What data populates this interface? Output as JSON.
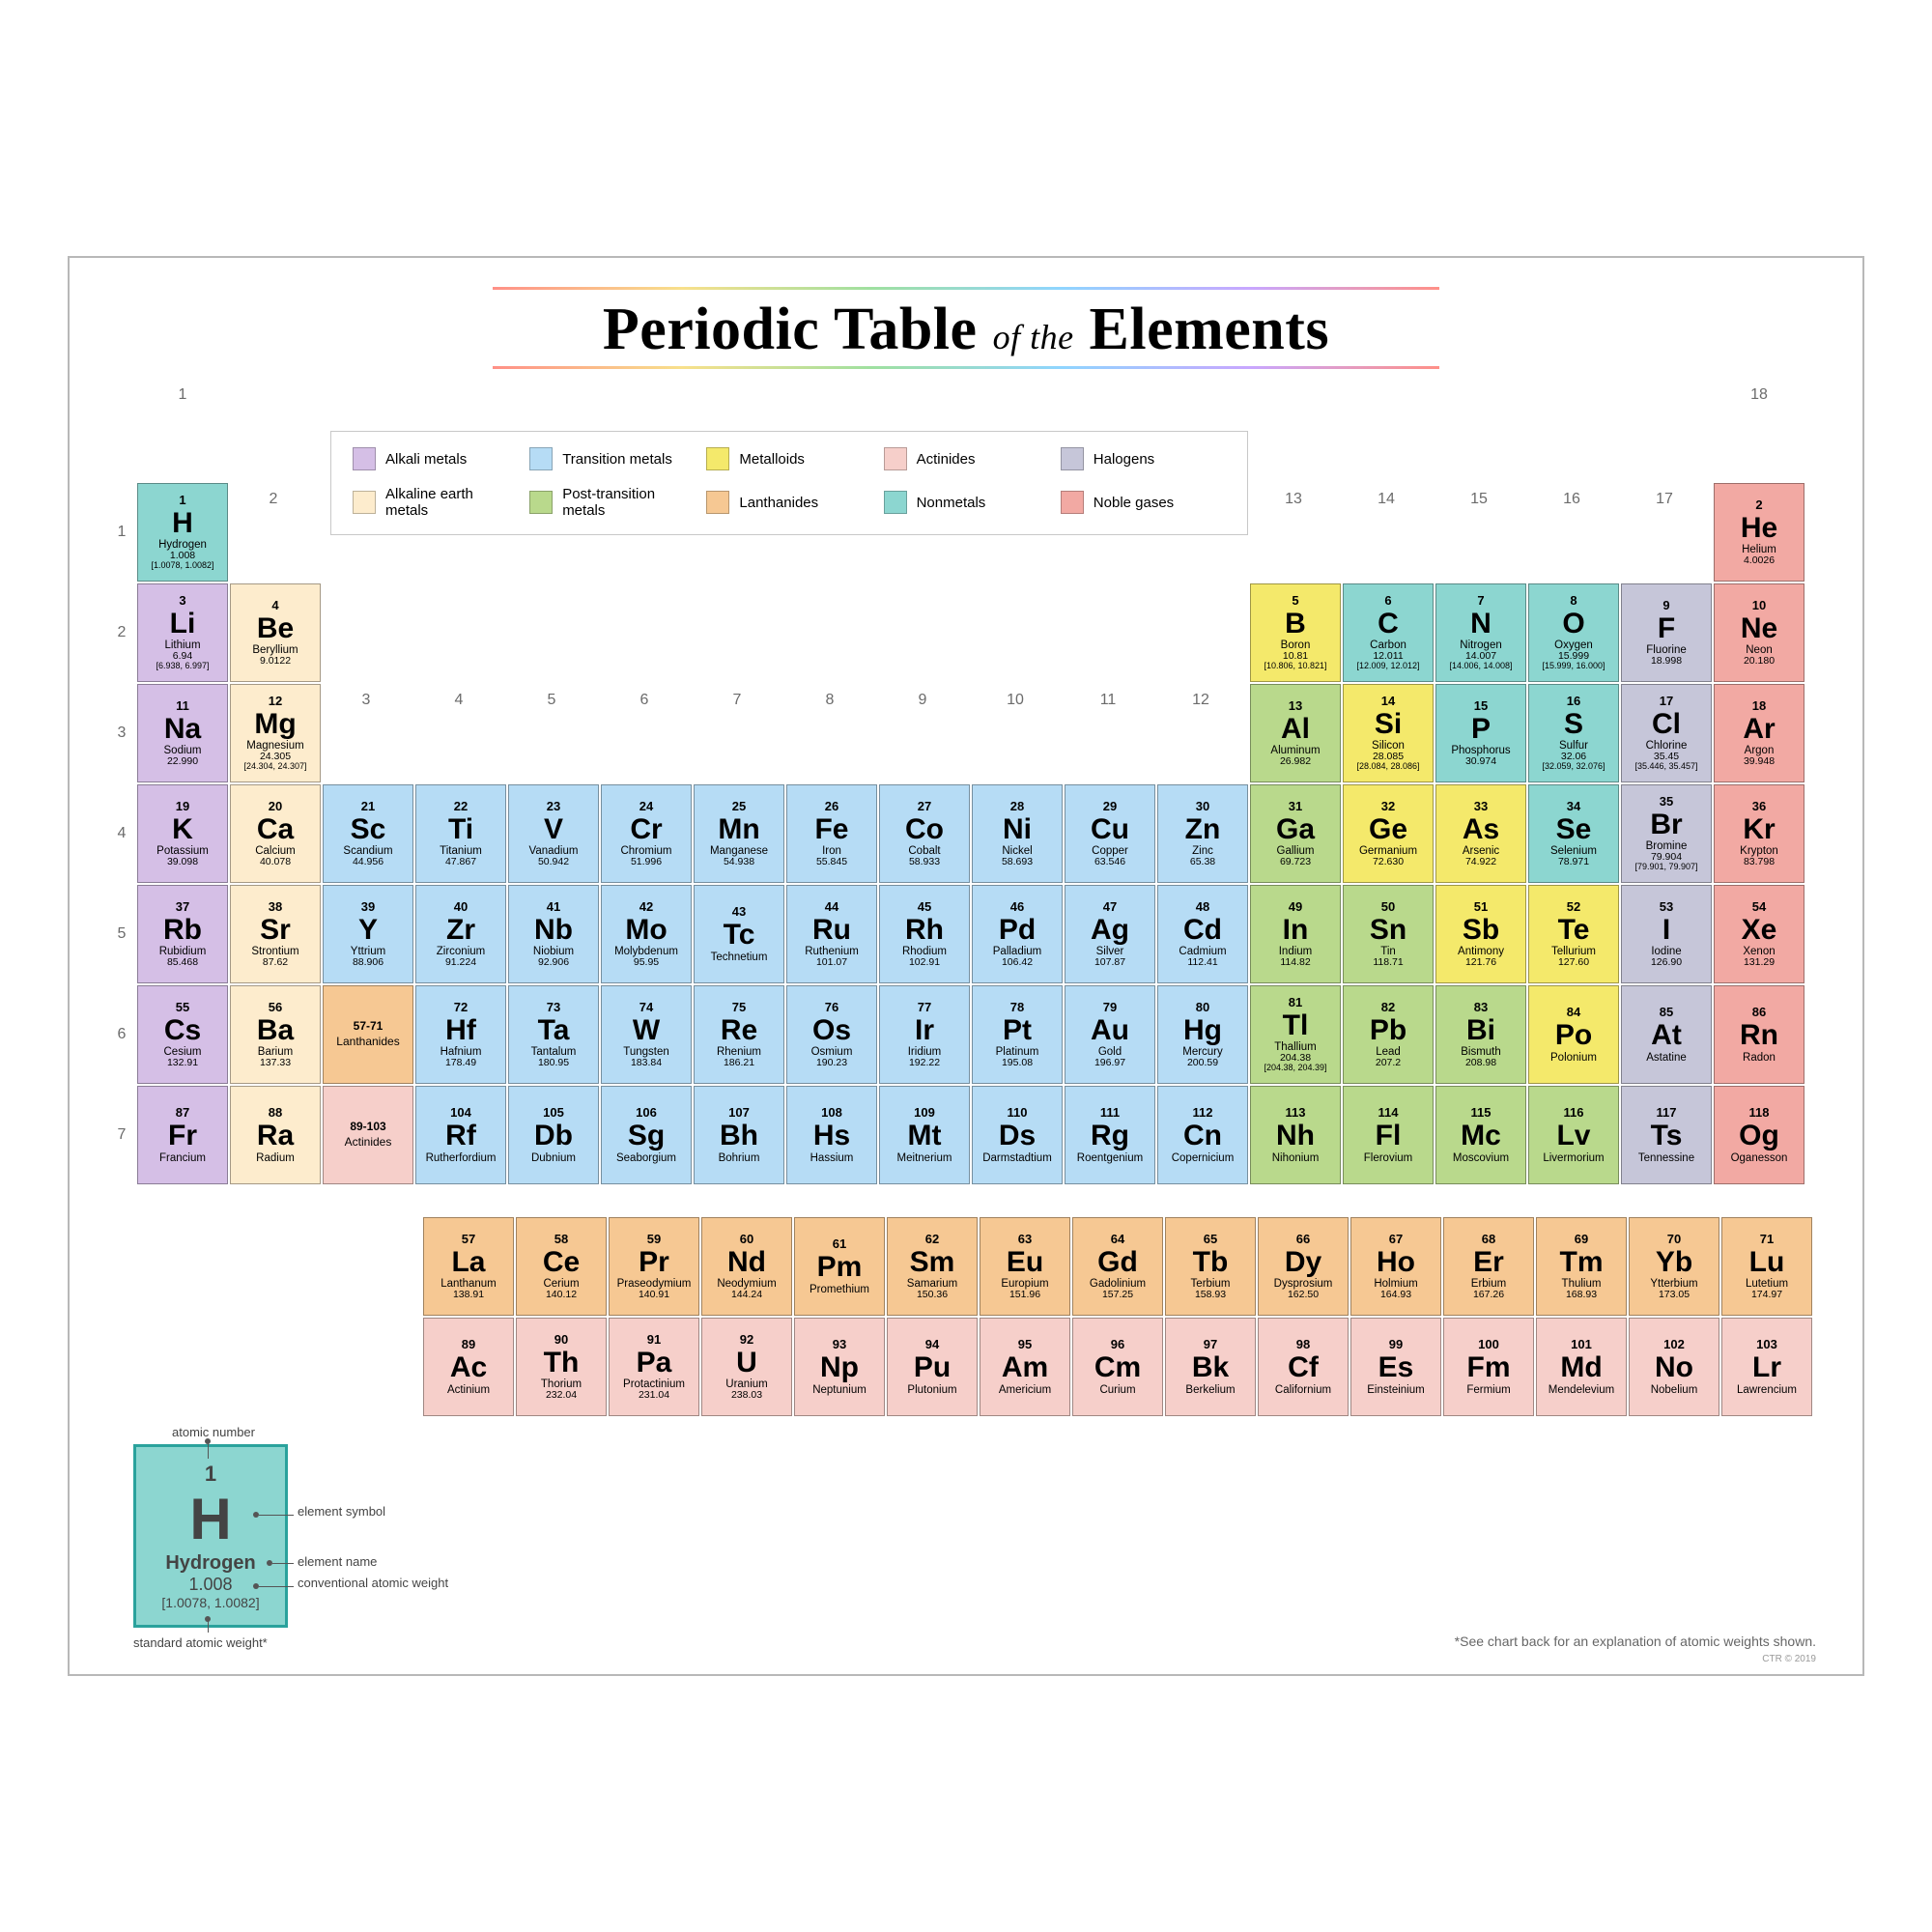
{
  "title_pre": "Periodic Table",
  "title_mid": "of the",
  "title_post": "Elements",
  "footnote": "*See chart back for an explanation of atomic weights shown.",
  "credit": "CTR © 2019",
  "categories": {
    "alkali": {
      "label": "Alkali metals",
      "color": "#d5bfe6"
    },
    "alkaline": {
      "label": "Alkaline earth metals",
      "color": "#fdeccd"
    },
    "transition": {
      "label": "Transition metals",
      "color": "#b6dcf5"
    },
    "post": {
      "label": "Post-transition metals",
      "color": "#b9d98c"
    },
    "metalloid": {
      "label": "Metalloids",
      "color": "#f4e96b"
    },
    "lanth": {
      "label": "Lanthanides",
      "color": "#f6c893"
    },
    "actin": {
      "label": "Actinides",
      "color": "#f6cfca"
    },
    "nonmetal": {
      "label": "Nonmetals",
      "color": "#8cd6d0"
    },
    "halogen": {
      "label": "Halogens",
      "color": "#c6c6d9"
    },
    "noble": {
      "label": "Noble gases",
      "color": "#f2a9a3"
    }
  },
  "legend_order": [
    "alkali",
    "transition",
    "metalloid",
    "actin",
    "halogen",
    "alkaline",
    "post",
    "lanth",
    "nonmetal",
    "noble"
  ],
  "group_headers": [
    "1",
    "2",
    "3",
    "4",
    "5",
    "6",
    "7",
    "8",
    "9",
    "10",
    "11",
    "12",
    "13",
    "14",
    "15",
    "16",
    "17",
    "18"
  ],
  "period_headers": [
    "1",
    "2",
    "3",
    "4",
    "5",
    "6",
    "7"
  ],
  "ranges": {
    "lanth": {
      "range": "57-71",
      "label": "Lanthanides",
      "cat": "lanth"
    },
    "actin": {
      "range": "89-103",
      "label": "Actinides",
      "cat": "actin"
    }
  },
  "key": {
    "heading_top": "atomic number",
    "heading_sym": "element symbol",
    "heading_name": "element name",
    "heading_wt": "conventional atomic weight",
    "heading_wt2": "standard atomic weight*",
    "n": "1",
    "s": "H",
    "nm": "Hydrogen",
    "w1": "1.008",
    "w2": "[1.0078, 1.0082]"
  },
  "elements": [
    {
      "n": 1,
      "s": "H",
      "name": "Hydrogen",
      "wt": "1.008",
      "wt2": "[1.0078, 1.0082]",
      "cat": "nonmetal",
      "g": 1,
      "p": 1
    },
    {
      "n": 2,
      "s": "He",
      "name": "Helium",
      "wt": "4.0026",
      "cat": "noble",
      "g": 18,
      "p": 1
    },
    {
      "n": 3,
      "s": "Li",
      "name": "Lithium",
      "wt": "6.94",
      "wt2": "[6.938, 6.997]",
      "cat": "alkali",
      "g": 1,
      "p": 2
    },
    {
      "n": 4,
      "s": "Be",
      "name": "Beryllium",
      "wt": "9.0122",
      "cat": "alkaline",
      "g": 2,
      "p": 2
    },
    {
      "n": 5,
      "s": "B",
      "name": "Boron",
      "wt": "10.81",
      "wt2": "[10.806, 10.821]",
      "cat": "metalloid",
      "g": 13,
      "p": 2
    },
    {
      "n": 6,
      "s": "C",
      "name": "Carbon",
      "wt": "12.011",
      "wt2": "[12.009, 12.012]",
      "cat": "nonmetal",
      "g": 14,
      "p": 2
    },
    {
      "n": 7,
      "s": "N",
      "name": "Nitrogen",
      "wt": "14.007",
      "wt2": "[14.006, 14.008]",
      "cat": "nonmetal",
      "g": 15,
      "p": 2
    },
    {
      "n": 8,
      "s": "O",
      "name": "Oxygen",
      "wt": "15.999",
      "wt2": "[15.999, 16.000]",
      "cat": "nonmetal",
      "g": 16,
      "p": 2
    },
    {
      "n": 9,
      "s": "F",
      "name": "Fluorine",
      "wt": "18.998",
      "cat": "halogen",
      "g": 17,
      "p": 2
    },
    {
      "n": 10,
      "s": "Ne",
      "name": "Neon",
      "wt": "20.180",
      "cat": "noble",
      "g": 18,
      "p": 2
    },
    {
      "n": 11,
      "s": "Na",
      "name": "Sodium",
      "wt": "22.990",
      "cat": "alkali",
      "g": 1,
      "p": 3
    },
    {
      "n": 12,
      "s": "Mg",
      "name": "Magnesium",
      "wt": "24.305",
      "wt2": "[24.304, 24.307]",
      "cat": "alkaline",
      "g": 2,
      "p": 3
    },
    {
      "n": 13,
      "s": "Al",
      "name": "Aluminum",
      "wt": "26.982",
      "cat": "post",
      "g": 13,
      "p": 3
    },
    {
      "n": 14,
      "s": "Si",
      "name": "Silicon",
      "wt": "28.085",
      "wt2": "[28.084, 28.086]",
      "cat": "metalloid",
      "g": 14,
      "p": 3
    },
    {
      "n": 15,
      "s": "P",
      "name": "Phosphorus",
      "wt": "30.974",
      "cat": "nonmetal",
      "g": 15,
      "p": 3
    },
    {
      "n": 16,
      "s": "S",
      "name": "Sulfur",
      "wt": "32.06",
      "wt2": "[32.059, 32.076]",
      "cat": "nonmetal",
      "g": 16,
      "p": 3
    },
    {
      "n": 17,
      "s": "Cl",
      "name": "Chlorine",
      "wt": "35.45",
      "wt2": "[35.446, 35.457]",
      "cat": "halogen",
      "g": 17,
      "p": 3
    },
    {
      "n": 18,
      "s": "Ar",
      "name": "Argon",
      "wt": "39.948",
      "cat": "noble",
      "g": 18,
      "p": 3
    },
    {
      "n": 19,
      "s": "K",
      "name": "Potassium",
      "wt": "39.098",
      "cat": "alkali",
      "g": 1,
      "p": 4
    },
    {
      "n": 20,
      "s": "Ca",
      "name": "Calcium",
      "wt": "40.078",
      "cat": "alkaline",
      "g": 2,
      "p": 4
    },
    {
      "n": 21,
      "s": "Sc",
      "name": "Scandium",
      "wt": "44.956",
      "cat": "transition",
      "g": 3,
      "p": 4
    },
    {
      "n": 22,
      "s": "Ti",
      "name": "Titanium",
      "wt": "47.867",
      "cat": "transition",
      "g": 4,
      "p": 4
    },
    {
      "n": 23,
      "s": "V",
      "name": "Vanadium",
      "wt": "50.942",
      "cat": "transition",
      "g": 5,
      "p": 4
    },
    {
      "n": 24,
      "s": "Cr",
      "name": "Chromium",
      "wt": "51.996",
      "cat": "transition",
      "g": 6,
      "p": 4
    },
    {
      "n": 25,
      "s": "Mn",
      "name": "Manganese",
      "wt": "54.938",
      "cat": "transition",
      "g": 7,
      "p": 4
    },
    {
      "n": 26,
      "s": "Fe",
      "name": "Iron",
      "wt": "55.845",
      "cat": "transition",
      "g": 8,
      "p": 4
    },
    {
      "n": 27,
      "s": "Co",
      "name": "Cobalt",
      "wt": "58.933",
      "cat": "transition",
      "g": 9,
      "p": 4
    },
    {
      "n": 28,
      "s": "Ni",
      "name": "Nickel",
      "wt": "58.693",
      "cat": "transition",
      "g": 10,
      "p": 4
    },
    {
      "n": 29,
      "s": "Cu",
      "name": "Copper",
      "wt": "63.546",
      "cat": "transition",
      "g": 11,
      "p": 4
    },
    {
      "n": 30,
      "s": "Zn",
      "name": "Zinc",
      "wt": "65.38",
      "cat": "transition",
      "g": 12,
      "p": 4
    },
    {
      "n": 31,
      "s": "Ga",
      "name": "Gallium",
      "wt": "69.723",
      "cat": "post",
      "g": 13,
      "p": 4
    },
    {
      "n": 32,
      "s": "Ge",
      "name": "Germanium",
      "wt": "72.630",
      "cat": "metalloid",
      "g": 14,
      "p": 4
    },
    {
      "n": 33,
      "s": "As",
      "name": "Arsenic",
      "wt": "74.922",
      "cat": "metalloid",
      "g": 15,
      "p": 4
    },
    {
      "n": 34,
      "s": "Se",
      "name": "Selenium",
      "wt": "78.971",
      "cat": "nonmetal",
      "g": 16,
      "p": 4
    },
    {
      "n": 35,
      "s": "Br",
      "name": "Bromine",
      "wt": "79.904",
      "wt2": "[79.901, 79.907]",
      "cat": "halogen",
      "g": 17,
      "p": 4
    },
    {
      "n": 36,
      "s": "Kr",
      "name": "Krypton",
      "wt": "83.798",
      "cat": "noble",
      "g": 18,
      "p": 4
    },
    {
      "n": 37,
      "s": "Rb",
      "name": "Rubidium",
      "wt": "85.468",
      "cat": "alkali",
      "g": 1,
      "p": 5
    },
    {
      "n": 38,
      "s": "Sr",
      "name": "Strontium",
      "wt": "87.62",
      "cat": "alkaline",
      "g": 2,
      "p": 5
    },
    {
      "n": 39,
      "s": "Y",
      "name": "Yttrium",
      "wt": "88.906",
      "cat": "transition",
      "g": 3,
      "p": 5
    },
    {
      "n": 40,
      "s": "Zr",
      "name": "Zirconium",
      "wt": "91.224",
      "cat": "transition",
      "g": 4,
      "p": 5
    },
    {
      "n": 41,
      "s": "Nb",
      "name": "Niobium",
      "wt": "92.906",
      "cat": "transition",
      "g": 5,
      "p": 5
    },
    {
      "n": 42,
      "s": "Mo",
      "name": "Molybdenum",
      "wt": "95.95",
      "cat": "transition",
      "g": 6,
      "p": 5
    },
    {
      "n": 43,
      "s": "Tc",
      "name": "Technetium",
      "wt": "",
      "cat": "transition",
      "g": 7,
      "p": 5
    },
    {
      "n": 44,
      "s": "Ru",
      "name": "Ruthenium",
      "wt": "101.07",
      "cat": "transition",
      "g": 8,
      "p": 5
    },
    {
      "n": 45,
      "s": "Rh",
      "name": "Rhodium",
      "wt": "102.91",
      "cat": "transition",
      "g": 9,
      "p": 5
    },
    {
      "n": 46,
      "s": "Pd",
      "name": "Palladium",
      "wt": "106.42",
      "cat": "transition",
      "g": 10,
      "p": 5
    },
    {
      "n": 47,
      "s": "Ag",
      "name": "Silver",
      "wt": "107.87",
      "cat": "transition",
      "g": 11,
      "p": 5
    },
    {
      "n": 48,
      "s": "Cd",
      "name": "Cadmium",
      "wt": "112.41",
      "cat": "transition",
      "g": 12,
      "p": 5
    },
    {
      "n": 49,
      "s": "In",
      "name": "Indium",
      "wt": "114.82",
      "cat": "post",
      "g": 13,
      "p": 5
    },
    {
      "n": 50,
      "s": "Sn",
      "name": "Tin",
      "wt": "118.71",
      "cat": "post",
      "g": 14,
      "p": 5
    },
    {
      "n": 51,
      "s": "Sb",
      "name": "Antimony",
      "wt": "121.76",
      "cat": "metalloid",
      "g": 15,
      "p": 5
    },
    {
      "n": 52,
      "s": "Te",
      "name": "Tellurium",
      "wt": "127.60",
      "cat": "metalloid",
      "g": 16,
      "p": 5
    },
    {
      "n": 53,
      "s": "I",
      "name": "Iodine",
      "wt": "126.90",
      "cat": "halogen",
      "g": 17,
      "p": 5
    },
    {
      "n": 54,
      "s": "Xe",
      "name": "Xenon",
      "wt": "131.29",
      "cat": "noble",
      "g": 18,
      "p": 5
    },
    {
      "n": 55,
      "s": "Cs",
      "name": "Cesium",
      "wt": "132.91",
      "cat": "alkali",
      "g": 1,
      "p": 6
    },
    {
      "n": 56,
      "s": "Ba",
      "name": "Barium",
      "wt": "137.33",
      "cat": "alkaline",
      "g": 2,
      "p": 6
    },
    {
      "n": 72,
      "s": "Hf",
      "name": "Hafnium",
      "wt": "178.49",
      "cat": "transition",
      "g": 4,
      "p": 6
    },
    {
      "n": 73,
      "s": "Ta",
      "name": "Tantalum",
      "wt": "180.95",
      "cat": "transition",
      "g": 5,
      "p": 6
    },
    {
      "n": 74,
      "s": "W",
      "name": "Tungsten",
      "wt": "183.84",
      "cat": "transition",
      "g": 6,
      "p": 6
    },
    {
      "n": 75,
      "s": "Re",
      "name": "Rhenium",
      "wt": "186.21",
      "cat": "transition",
      "g": 7,
      "p": 6
    },
    {
      "n": 76,
      "s": "Os",
      "name": "Osmium",
      "wt": "190.23",
      "cat": "transition",
      "g": 8,
      "p": 6
    },
    {
      "n": 77,
      "s": "Ir",
      "name": "Iridium",
      "wt": "192.22",
      "cat": "transition",
      "g": 9,
      "p": 6
    },
    {
      "n": 78,
      "s": "Pt",
      "name": "Platinum",
      "wt": "195.08",
      "cat": "transition",
      "g": 10,
      "p": 6
    },
    {
      "n": 79,
      "s": "Au",
      "name": "Gold",
      "wt": "196.97",
      "cat": "transition",
      "g": 11,
      "p": 6
    },
    {
      "n": 80,
      "s": "Hg",
      "name": "Mercury",
      "wt": "200.59",
      "cat": "transition",
      "g": 12,
      "p": 6
    },
    {
      "n": 81,
      "s": "Tl",
      "name": "Thallium",
      "wt": "204.38",
      "wt2": "[204.38, 204.39]",
      "cat": "post",
      "g": 13,
      "p": 6
    },
    {
      "n": 82,
      "s": "Pb",
      "name": "Lead",
      "wt": "207.2",
      "cat": "post",
      "g": 14,
      "p": 6
    },
    {
      "n": 83,
      "s": "Bi",
      "name": "Bismuth",
      "wt": "208.98",
      "cat": "post",
      "g": 15,
      "p": 6
    },
    {
      "n": 84,
      "s": "Po",
      "name": "Polonium",
      "wt": "",
      "cat": "metalloid",
      "g": 16,
      "p": 6
    },
    {
      "n": 85,
      "s": "At",
      "name": "Astatine",
      "wt": "",
      "cat": "halogen",
      "g": 17,
      "p": 6
    },
    {
      "n": 86,
      "s": "Rn",
      "name": "Radon",
      "wt": "",
      "cat": "noble",
      "g": 18,
      "p": 6
    },
    {
      "n": 87,
      "s": "Fr",
      "name": "Francium",
      "wt": "",
      "cat": "alkali",
      "g": 1,
      "p": 7
    },
    {
      "n": 88,
      "s": "Ra",
      "name": "Radium",
      "wt": "",
      "cat": "alkaline",
      "g": 2,
      "p": 7
    },
    {
      "n": 104,
      "s": "Rf",
      "name": "Rutherfordium",
      "wt": "",
      "cat": "transition",
      "g": 4,
      "p": 7
    },
    {
      "n": 105,
      "s": "Db",
      "name": "Dubnium",
      "wt": "",
      "cat": "transition",
      "g": 5,
      "p": 7
    },
    {
      "n": 106,
      "s": "Sg",
      "name": "Seaborgium",
      "wt": "",
      "cat": "transition",
      "g": 6,
      "p": 7
    },
    {
      "n": 107,
      "s": "Bh",
      "name": "Bohrium",
      "wt": "",
      "cat": "transition",
      "g": 7,
      "p": 7
    },
    {
      "n": 108,
      "s": "Hs",
      "name": "Hassium",
      "wt": "",
      "cat": "transition",
      "g": 8,
      "p": 7
    },
    {
      "n": 109,
      "s": "Mt",
      "name": "Meitnerium",
      "wt": "",
      "cat": "transition",
      "g": 9,
      "p": 7
    },
    {
      "n": 110,
      "s": "Ds",
      "name": "Darmstadtium",
      "wt": "",
      "cat": "transition",
      "g": 10,
      "p": 7
    },
    {
      "n": 111,
      "s": "Rg",
      "name": "Roentgenium",
      "wt": "",
      "cat": "transition",
      "g": 11,
      "p": 7
    },
    {
      "n": 112,
      "s": "Cn",
      "name": "Copernicium",
      "wt": "",
      "cat": "transition",
      "g": 12,
      "p": 7
    },
    {
      "n": 113,
      "s": "Nh",
      "name": "Nihonium",
      "wt": "",
      "cat": "post",
      "g": 13,
      "p": 7
    },
    {
      "n": 114,
      "s": "Fl",
      "name": "Flerovium",
      "wt": "",
      "cat": "post",
      "g": 14,
      "p": 7
    },
    {
      "n": 115,
      "s": "Mc",
      "name": "Moscovium",
      "wt": "",
      "cat": "post",
      "g": 15,
      "p": 7
    },
    {
      "n": 116,
      "s": "Lv",
      "name": "Livermorium",
      "wt": "",
      "cat": "post",
      "g": 16,
      "p": 7
    },
    {
      "n": 117,
      "s": "Ts",
      "name": "Tennessine",
      "wt": "",
      "cat": "halogen",
      "g": 17,
      "p": 7
    },
    {
      "n": 118,
      "s": "Og",
      "name": "Oganesson",
      "wt": "",
      "cat": "noble",
      "g": 18,
      "p": 7
    }
  ],
  "lanthanides": [
    {
      "n": 57,
      "s": "La",
      "name": "Lanthanum",
      "wt": "138.91",
      "cat": "lanth"
    },
    {
      "n": 58,
      "s": "Ce",
      "name": "Cerium",
      "wt": "140.12",
      "cat": "lanth"
    },
    {
      "n": 59,
      "s": "Pr",
      "name": "Praseodymium",
      "wt": "140.91",
      "cat": "lanth"
    },
    {
      "n": 60,
      "s": "Nd",
      "name": "Neodymium",
      "wt": "144.24",
      "cat": "lanth"
    },
    {
      "n": 61,
      "s": "Pm",
      "name": "Promethium",
      "wt": "",
      "cat": "lanth"
    },
    {
      "n": 62,
      "s": "Sm",
      "name": "Samarium",
      "wt": "150.36",
      "cat": "lanth"
    },
    {
      "n": 63,
      "s": "Eu",
      "name": "Europium",
      "wt": "151.96",
      "cat": "lanth"
    },
    {
      "n": 64,
      "s": "Gd",
      "name": "Gadolinium",
      "wt": "157.25",
      "cat": "lanth"
    },
    {
      "n": 65,
      "s": "Tb",
      "name": "Terbium",
      "wt": "158.93",
      "cat": "lanth"
    },
    {
      "n": 66,
      "s": "Dy",
      "name": "Dysprosium",
      "wt": "162.50",
      "cat": "lanth"
    },
    {
      "n": 67,
      "s": "Ho",
      "name": "Holmium",
      "wt": "164.93",
      "cat": "lanth"
    },
    {
      "n": 68,
      "s": "Er",
      "name": "Erbium",
      "wt": "167.26",
      "cat": "lanth"
    },
    {
      "n": 69,
      "s": "Tm",
      "name": "Thulium",
      "wt": "168.93",
      "cat": "lanth"
    },
    {
      "n": 70,
      "s": "Yb",
      "name": "Ytterbium",
      "wt": "173.05",
      "cat": "lanth"
    },
    {
      "n": 71,
      "s": "Lu",
      "name": "Lutetium",
      "wt": "174.97",
      "cat": "lanth"
    }
  ],
  "actinides": [
    {
      "n": 89,
      "s": "Ac",
      "name": "Actinium",
      "wt": "",
      "cat": "actin"
    },
    {
      "n": 90,
      "s": "Th",
      "name": "Thorium",
      "wt": "232.04",
      "cat": "actin"
    },
    {
      "n": 91,
      "s": "Pa",
      "name": "Protactinium",
      "wt": "231.04",
      "cat": "actin"
    },
    {
      "n": 92,
      "s": "U",
      "name": "Uranium",
      "wt": "238.03",
      "cat": "actin"
    },
    {
      "n": 93,
      "s": "Np",
      "name": "Neptunium",
      "wt": "",
      "cat": "actin"
    },
    {
      "n": 94,
      "s": "Pu",
      "name": "Plutonium",
      "wt": "",
      "cat": "actin"
    },
    {
      "n": 95,
      "s": "Am",
      "name": "Americium",
      "wt": "",
      "cat": "actin"
    },
    {
      "n": 96,
      "s": "Cm",
      "name": "Curium",
      "wt": "",
      "cat": "actin"
    },
    {
      "n": 97,
      "s": "Bk",
      "name": "Berkelium",
      "wt": "",
      "cat": "actin"
    },
    {
      "n": 98,
      "s": "Cf",
      "name": "Californium",
      "wt": "",
      "cat": "actin"
    },
    {
      "n": 99,
      "s": "Es",
      "name": "Einsteinium",
      "wt": "",
      "cat": "actin"
    },
    {
      "n": 100,
      "s": "Fm",
      "name": "Fermium",
      "wt": "",
      "cat": "actin"
    },
    {
      "n": 101,
      "s": "Md",
      "name": "Mendelevium",
      "wt": "",
      "cat": "actin"
    },
    {
      "n": 102,
      "s": "No",
      "name": "Nobelium",
      "wt": "",
      "cat": "actin"
    },
    {
      "n": 103,
      "s": "Lr",
      "name": "Lawrencium",
      "wt": "",
      "cat": "actin"
    }
  ]
}
